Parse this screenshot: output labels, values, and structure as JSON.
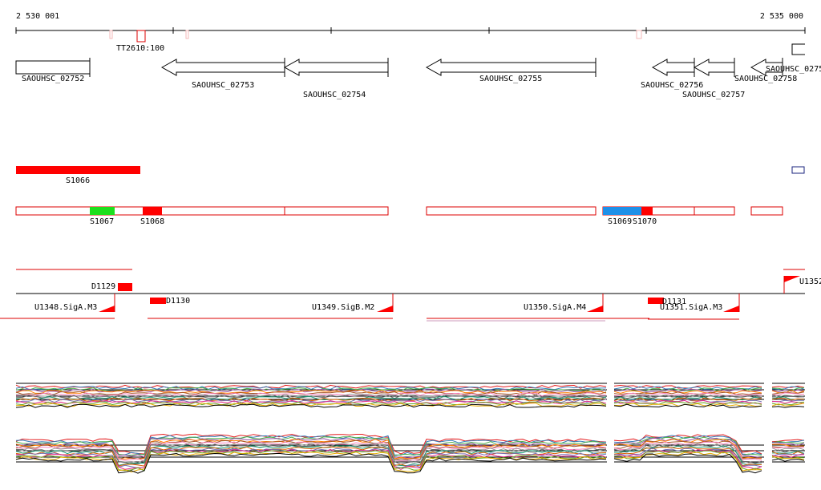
{
  "ruler": {
    "start": "2 530 001",
    "end": "2 535 000"
  },
  "terminator": "TT2610:100",
  "genes": [
    "SAOUHSC_02752",
    "SAOUHSC_02753",
    "SAOUHSC_02754",
    "SAOUHSC_02755",
    "SAOUHSC_02756",
    "SAOUHSC_02757",
    "SAOUHSC_02758",
    "SAOUHSC_0275"
  ],
  "segments": [
    "S1066",
    "S1067",
    "S1068",
    "S1069",
    "S1070"
  ],
  "features": [
    "D1129",
    "D1130",
    "D1131",
    "U1348.SigA.M3",
    "U1349.SigB.M2",
    "U1350.SigA.M4",
    "U1351.SigA.M3",
    "U1352"
  ]
}
